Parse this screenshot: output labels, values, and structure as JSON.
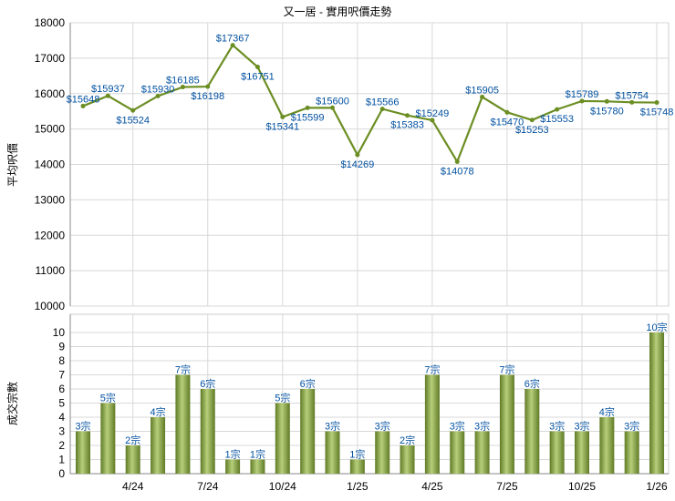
{
  "chart_data": [
    {
      "type": "line",
      "title": "又一居 - 實用呎價走勢",
      "ylabel": "平均呎價",
      "ylim": [
        10000,
        18000
      ],
      "yticks": [
        10000,
        11000,
        12000,
        13000,
        14000,
        15000,
        16000,
        17000,
        18000
      ],
      "values": [
        15648,
        15937,
        15524,
        15930,
        16185,
        16198,
        17367,
        16751,
        15341,
        15599,
        15600,
        14269,
        15566,
        15383,
        15249,
        14078,
        15905,
        15470,
        15253,
        15553,
        15789,
        15780,
        15754,
        15748
      ],
      "label_prefix": "$",
      "color": "#6b8e23",
      "label_color": "#0050a0"
    },
    {
      "type": "bar",
      "ylabel": "成交宗數",
      "ylim": [
        0,
        10
      ],
      "yticks": [
        0,
        1,
        2,
        3,
        4,
        5,
        6,
        7,
        8,
        9,
        10
      ],
      "values": [
        3,
        5,
        2,
        4,
        7,
        6,
        1,
        1,
        5,
        6,
        3,
        1,
        3,
        2,
        7,
        3,
        3,
        7,
        6,
        3,
        3,
        4,
        3,
        10
      ],
      "label_suffix": "宗",
      "xticks": [
        {
          "index": 2,
          "label": "4/24"
        },
        {
          "index": 5,
          "label": "7/24"
        },
        {
          "index": 8,
          "label": "10/24"
        },
        {
          "index": 11,
          "label": "1/25"
        },
        {
          "index": 14,
          "label": "4/25"
        },
        {
          "index": 17,
          "label": "7/25"
        },
        {
          "index": 20,
          "label": "10/25"
        },
        {
          "index": 23,
          "label": "1/26"
        }
      ]
    }
  ]
}
